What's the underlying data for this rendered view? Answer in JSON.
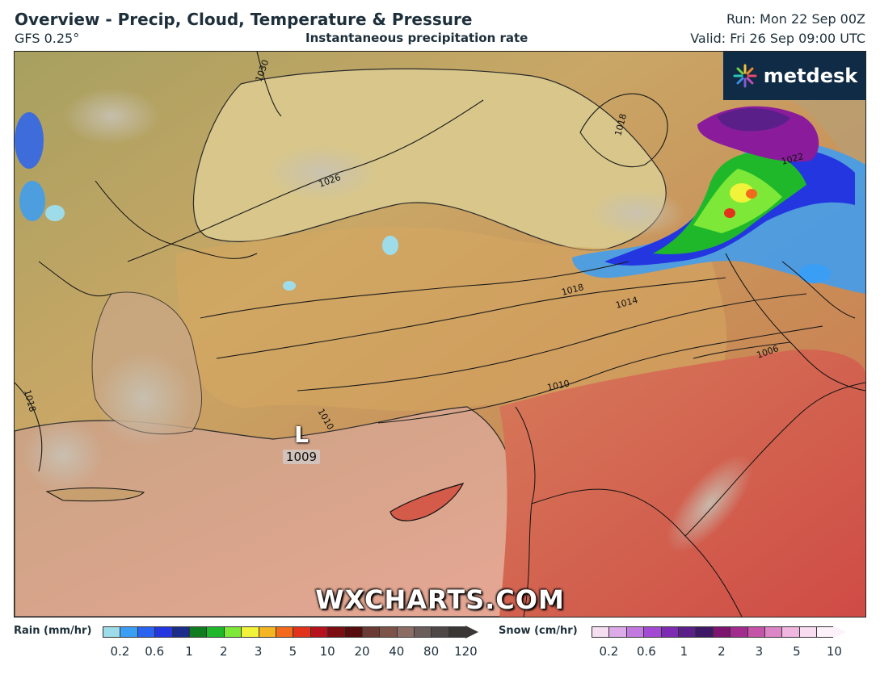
{
  "header": {
    "title": "Overview - Precip, Cloud, Temperature & Pressure",
    "model": "GFS 0.25°",
    "layer": "Instantaneous precipitation rate",
    "run": "Run: Mon 22 Sep 00Z",
    "valid": "Valid: Fri 26 Sep 09:00 UTC"
  },
  "brand": {
    "name": "metdesk",
    "icon": "metdesk-starburst-icon"
  },
  "watermark": "WXCHARTS.COM",
  "map": {
    "low_center": {
      "letter": "L",
      "pressure": "1009"
    },
    "isobar_labels": [
      "1030",
      "1026",
      "1018",
      "1018",
      "1014",
      "1010",
      "1006",
      "1018",
      "1022",
      "1010"
    ],
    "colors": {
      "land_warm": "#c99a5a",
      "land_hot": "#d05a45",
      "sea": "#e3a890",
      "cloud": "#b9b2a2",
      "rain_heavy": "#8a1c9c"
    }
  },
  "legend": {
    "rain": {
      "title": "Rain (mm/hr)",
      "ticks": [
        "0.2",
        "0.6",
        "1",
        "2",
        "3",
        "5",
        "10",
        "20",
        "40",
        "80",
        "120"
      ],
      "colors": [
        "#9fdcea",
        "#3b9ef5",
        "#2a63f0",
        "#2336e0",
        "#1a2d8c",
        "#0f7d1f",
        "#1fb82a",
        "#7de838",
        "#f1f23a",
        "#f5b523",
        "#f26b1c",
        "#e2321b",
        "#b5121b",
        "#7c0d12",
        "#560d0d",
        "#6b3a33",
        "#7d5249",
        "#8c6d66",
        "#6a5d5b",
        "#4e4747",
        "#3a3636"
      ]
    },
    "snow": {
      "title": "Snow (cm/hr)",
      "ticks": [
        "0.2",
        "0.6",
        "1",
        "2",
        "3",
        "5",
        "10"
      ],
      "colors": [
        "#f4def0",
        "#dcaae6",
        "#c27ae0",
        "#a34ad5",
        "#7d2cb2",
        "#5b1f8a",
        "#3e1866",
        "#7d1470",
        "#a22c8e",
        "#c354a8",
        "#dd86c6",
        "#efb6df",
        "#f8dcef",
        "#fdf1fa"
      ]
    }
  }
}
